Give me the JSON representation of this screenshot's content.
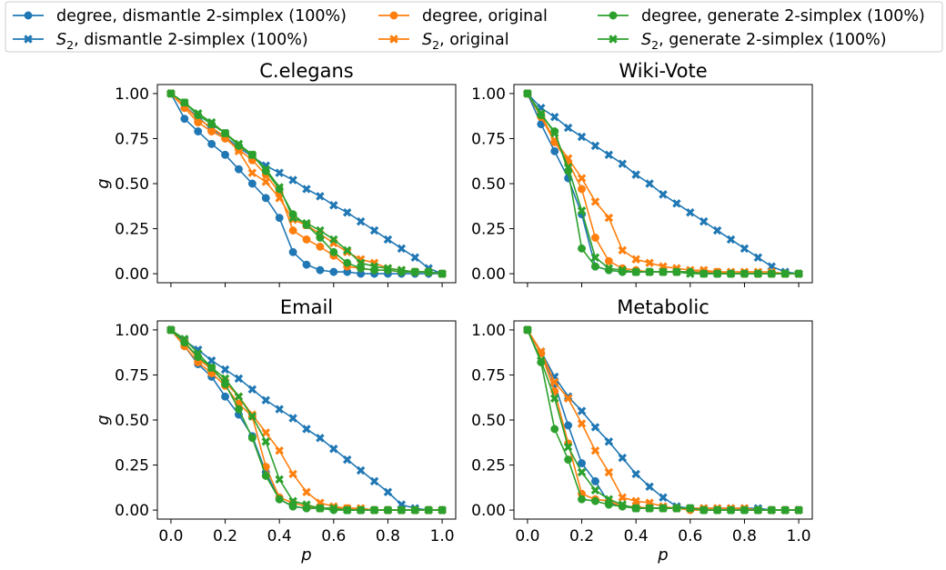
{
  "figure": {
    "legend": [
      {
        "label_main": "degree, dismantle 2-simplex (100%)",
        "label_sym": "",
        "label_sub": "",
        "color": "#1f77b4",
        "marker": "circle"
      },
      {
        "label_main": ", dismantle 2-simplex (100%)",
        "label_sym": "S",
        "label_sub": "2",
        "color": "#1f77b4",
        "marker": "x"
      },
      {
        "label_main": "degree, original",
        "label_sym": "",
        "label_sub": "",
        "color": "#ff7f0e",
        "marker": "circle"
      },
      {
        "label_main": ", original",
        "label_sym": "S",
        "label_sub": "2",
        "color": "#ff7f0e",
        "marker": "x"
      },
      {
        "label_main": "degree, generate 2-simplex (100%)",
        "label_sym": "",
        "label_sub": "",
        "color": "#2ca02c",
        "marker": "circle"
      },
      {
        "label_main": ", generate  2-simplex (100%)",
        "label_sym": "S",
        "label_sub": "2",
        "color": "#2ca02c",
        "marker": "x"
      }
    ]
  },
  "chart_data": [
    {
      "type": "line",
      "title": "C.elegans",
      "xlabel": "",
      "ylabel": "g",
      "xlim": [
        -0.05,
        1.05
      ],
      "ylim": [
        -0.05,
        1.05
      ],
      "xticks": [
        0.0,
        0.2,
        0.4,
        0.6,
        0.8,
        1.0
      ],
      "xtick_labels": [],
      "yticks": [
        0.0,
        0.25,
        0.5,
        0.75,
        1.0
      ],
      "ytick_labels": [
        "0.00",
        "0.25",
        "0.50",
        "0.75",
        "1.00"
      ],
      "x": [
        0,
        0.05,
        0.1,
        0.15,
        0.2,
        0.25,
        0.3,
        0.35,
        0.4,
        0.45,
        0.5,
        0.55,
        0.6,
        0.65,
        0.7,
        0.75,
        0.8,
        0.85,
        0.9,
        0.95,
        1.0
      ],
      "series": [
        {
          "color": "#1f77b4",
          "marker": "circle",
          "values": [
            1.0,
            0.86,
            0.79,
            0.72,
            0.66,
            0.58,
            0.5,
            0.42,
            0.31,
            0.12,
            0.05,
            0.02,
            0.01,
            0.01,
            0.0,
            0.0,
            0.0,
            0.0,
            0.0,
            0.0,
            0.0
          ]
        },
        {
          "color": "#1f77b4",
          "marker": "x",
          "values": [
            1.0,
            0.93,
            0.87,
            0.8,
            0.76,
            0.7,
            0.65,
            0.6,
            0.56,
            0.52,
            0.47,
            0.43,
            0.38,
            0.34,
            0.29,
            0.24,
            0.19,
            0.14,
            0.09,
            0.03,
            0.0
          ]
        },
        {
          "color": "#ff7f0e",
          "marker": "circle",
          "values": [
            1.0,
            0.92,
            0.84,
            0.79,
            0.75,
            0.69,
            0.63,
            0.55,
            0.45,
            0.24,
            0.19,
            0.15,
            0.1,
            0.04,
            0.03,
            0.02,
            0.02,
            0.01,
            0.01,
            0.01,
            0.0
          ]
        },
        {
          "color": "#ff7f0e",
          "marker": "x",
          "values": [
            1.0,
            0.93,
            0.86,
            0.81,
            0.76,
            0.68,
            0.56,
            0.51,
            0.42,
            0.3,
            0.27,
            0.22,
            0.17,
            0.12,
            0.08,
            0.06,
            0.03,
            0.02,
            0.01,
            0.01,
            0.0
          ]
        },
        {
          "color": "#2ca02c",
          "marker": "circle",
          "values": [
            1.0,
            0.95,
            0.88,
            0.83,
            0.78,
            0.71,
            0.66,
            0.57,
            0.47,
            0.33,
            0.27,
            0.2,
            0.12,
            0.06,
            0.03,
            0.02,
            0.02,
            0.01,
            0.01,
            0.01,
            0.0
          ]
        },
        {
          "color": "#2ca02c",
          "marker": "x",
          "values": [
            1.0,
            0.95,
            0.89,
            0.84,
            0.78,
            0.72,
            0.66,
            0.58,
            0.48,
            0.31,
            0.28,
            0.24,
            0.19,
            0.13,
            0.06,
            0.04,
            0.03,
            0.02,
            0.01,
            0.01,
            0.0
          ]
        }
      ]
    },
    {
      "type": "line",
      "title": "Wiki-Vote",
      "xlabel": "",
      "ylabel": "",
      "xlim": [
        -0.05,
        1.05
      ],
      "ylim": [
        -0.05,
        1.05
      ],
      "xticks": [
        0.0,
        0.2,
        0.4,
        0.6,
        0.8,
        1.0
      ],
      "xtick_labels": [],
      "yticks": [
        0.0,
        0.25,
        0.5,
        0.75,
        1.0
      ],
      "ytick_labels": [
        "0.00",
        "0.25",
        "0.50",
        "0.75",
        "1.00"
      ],
      "x": [
        0,
        0.05,
        0.1,
        0.15,
        0.2,
        0.25,
        0.3,
        0.35,
        0.4,
        0.45,
        0.5,
        0.55,
        0.6,
        0.65,
        0.7,
        0.75,
        0.8,
        0.85,
        0.9,
        0.95,
        1.0
      ],
      "series": [
        {
          "color": "#1f77b4",
          "marker": "circle",
          "values": [
            1.0,
            0.83,
            0.68,
            0.53,
            0.33,
            0.04,
            0.02,
            0.01,
            0.01,
            0.01,
            0.01,
            0.01,
            0.01,
            0.01,
            0.0,
            0.0,
            0.0,
            0.0,
            0.0,
            0.0,
            0.0
          ]
        },
        {
          "color": "#1f77b4",
          "marker": "x",
          "values": [
            1.0,
            0.92,
            0.87,
            0.81,
            0.76,
            0.71,
            0.66,
            0.61,
            0.55,
            0.5,
            0.44,
            0.39,
            0.34,
            0.29,
            0.24,
            0.19,
            0.14,
            0.09,
            0.04,
            0.01,
            0.0
          ]
        },
        {
          "color": "#ff7f0e",
          "marker": "circle",
          "values": [
            1.0,
            0.87,
            0.73,
            0.62,
            0.47,
            0.2,
            0.07,
            0.03,
            0.02,
            0.01,
            0.01,
            0.01,
            0.01,
            0.01,
            0.01,
            0.0,
            0.0,
            0.0,
            0.0,
            0.0,
            0.0
          ]
        },
        {
          "color": "#ff7f0e",
          "marker": "x",
          "values": [
            1.0,
            0.88,
            0.74,
            0.64,
            0.53,
            0.4,
            0.31,
            0.13,
            0.08,
            0.06,
            0.04,
            0.03,
            0.02,
            0.02,
            0.01,
            0.01,
            0.01,
            0.01,
            0.01,
            0.0,
            0.0
          ]
        },
        {
          "color": "#2ca02c",
          "marker": "circle",
          "values": [
            1.0,
            0.88,
            0.79,
            0.57,
            0.14,
            0.04,
            0.02,
            0.01,
            0.01,
            0.01,
            0.01,
            0.01,
            0.01,
            0.0,
            0.0,
            0.0,
            0.0,
            0.0,
            0.0,
            0.0,
            0.0
          ]
        },
        {
          "color": "#2ca02c",
          "marker": "x",
          "values": [
            1.0,
            0.89,
            0.78,
            0.59,
            0.35,
            0.09,
            0.03,
            0.02,
            0.01,
            0.01,
            0.01,
            0.01,
            0.0,
            0.0,
            0.0,
            0.0,
            0.0,
            0.0,
            0.0,
            0.0,
            0.0
          ]
        }
      ]
    },
    {
      "type": "line",
      "title": "Email",
      "xlabel": "p",
      "ylabel": "g",
      "xlim": [
        -0.05,
        1.05
      ],
      "ylim": [
        -0.05,
        1.05
      ],
      "xticks": [
        0.0,
        0.2,
        0.4,
        0.6,
        0.8,
        1.0
      ],
      "xtick_labels": [
        "0.0",
        "0.2",
        "0.4",
        "0.6",
        "0.8",
        "1.0"
      ],
      "yticks": [
        0.0,
        0.25,
        0.5,
        0.75,
        1.0
      ],
      "ytick_labels": [
        "0.00",
        "0.25",
        "0.50",
        "0.75",
        "1.00"
      ],
      "x": [
        0,
        0.05,
        0.1,
        0.15,
        0.2,
        0.25,
        0.3,
        0.35,
        0.4,
        0.45,
        0.5,
        0.55,
        0.6,
        0.65,
        0.7,
        0.75,
        0.8,
        0.85,
        0.9,
        0.95,
        1.0
      ],
      "series": [
        {
          "color": "#1f77b4",
          "marker": "circle",
          "values": [
            1.0,
            0.91,
            0.81,
            0.74,
            0.63,
            0.53,
            0.41,
            0.21,
            0.06,
            0.02,
            0.01,
            0.01,
            0.01,
            0.0,
            0.0,
            0.0,
            0.0,
            0.0,
            0.0,
            0.0,
            0.0
          ]
        },
        {
          "color": "#1f77b4",
          "marker": "x",
          "values": [
            1.0,
            0.94,
            0.89,
            0.83,
            0.78,
            0.73,
            0.67,
            0.61,
            0.56,
            0.51,
            0.45,
            0.4,
            0.34,
            0.28,
            0.22,
            0.16,
            0.1,
            0.03,
            0.01,
            0.0,
            0.0
          ]
        },
        {
          "color": "#ff7f0e",
          "marker": "circle",
          "values": [
            1.0,
            0.91,
            0.82,
            0.76,
            0.69,
            0.59,
            0.52,
            0.24,
            0.07,
            0.04,
            0.02,
            0.01,
            0.01,
            0.01,
            0.0,
            0.0,
            0.0,
            0.0,
            0.0,
            0.0,
            0.0
          ]
        },
        {
          "color": "#ff7f0e",
          "marker": "x",
          "values": [
            1.0,
            0.93,
            0.84,
            0.78,
            0.71,
            0.63,
            0.53,
            0.43,
            0.33,
            0.2,
            0.1,
            0.04,
            0.02,
            0.01,
            0.01,
            0.0,
            0.0,
            0.0,
            0.0,
            0.0,
            0.0
          ]
        },
        {
          "color": "#2ca02c",
          "marker": "circle",
          "values": [
            1.0,
            0.93,
            0.85,
            0.79,
            0.7,
            0.56,
            0.4,
            0.19,
            0.06,
            0.02,
            0.01,
            0.01,
            0.0,
            0.0,
            0.0,
            0.0,
            0.0,
            0.0,
            0.0,
            0.0,
            0.0
          ]
        },
        {
          "color": "#2ca02c",
          "marker": "x",
          "values": [
            1.0,
            0.95,
            0.87,
            0.79,
            0.73,
            0.63,
            0.52,
            0.38,
            0.17,
            0.05,
            0.03,
            0.01,
            0.01,
            0.0,
            0.0,
            0.0,
            0.0,
            0.0,
            0.0,
            0.0,
            0.0
          ]
        }
      ]
    },
    {
      "type": "line",
      "title": "Metabolic",
      "xlabel": "p",
      "ylabel": "",
      "xlim": [
        -0.05,
        1.05
      ],
      "ylim": [
        -0.05,
        1.05
      ],
      "xticks": [
        0.0,
        0.2,
        0.4,
        0.6,
        0.8,
        1.0
      ],
      "xtick_labels": [
        "0.0",
        "0.2",
        "0.4",
        "0.6",
        "0.8",
        "1.0"
      ],
      "yticks": [
        0.0,
        0.25,
        0.5,
        0.75,
        1.0
      ],
      "ytick_labels": [
        "0.00",
        "0.25",
        "0.50",
        "0.75",
        "1.00"
      ],
      "x": [
        0,
        0.05,
        0.1,
        0.15,
        0.2,
        0.25,
        0.3,
        0.35,
        0.4,
        0.45,
        0.5,
        0.55,
        0.6,
        0.65,
        0.7,
        0.75,
        0.8,
        0.85,
        0.9,
        0.95,
        1.0
      ],
      "series": [
        {
          "color": "#1f77b4",
          "marker": "circle",
          "values": [
            1.0,
            0.87,
            0.7,
            0.47,
            0.26,
            0.16,
            0.04,
            0.02,
            0.01,
            0.01,
            0.01,
            0.01,
            0.01,
            0.0,
            0.0,
            0.0,
            0.0,
            0.0,
            0.0,
            0.0,
            0.0
          ]
        },
        {
          "color": "#1f77b4",
          "marker": "x",
          "values": [
            1.0,
            0.88,
            0.74,
            0.63,
            0.55,
            0.46,
            0.38,
            0.29,
            0.2,
            0.13,
            0.07,
            0.02,
            0.01,
            0.01,
            0.01,
            0.01,
            0.01,
            0.01,
            0.0,
            0.0,
            0.0
          ]
        },
        {
          "color": "#ff7f0e",
          "marker": "circle",
          "values": [
            1.0,
            0.87,
            0.66,
            0.37,
            0.09,
            0.06,
            0.05,
            0.02,
            0.02,
            0.01,
            0.01,
            0.01,
            0.0,
            0.0,
            0.0,
            0.0,
            0.0,
            0.0,
            0.0,
            0.0,
            0.0
          ]
        },
        {
          "color": "#ff7f0e",
          "marker": "x",
          "values": [
            1.0,
            0.88,
            0.71,
            0.62,
            0.48,
            0.33,
            0.21,
            0.07,
            0.05,
            0.04,
            0.02,
            0.01,
            0.01,
            0.01,
            0.01,
            0.01,
            0.01,
            0.0,
            0.0,
            0.0,
            0.0
          ]
        },
        {
          "color": "#2ca02c",
          "marker": "circle",
          "values": [
            1.0,
            0.82,
            0.45,
            0.28,
            0.06,
            0.05,
            0.03,
            0.02,
            0.01,
            0.01,
            0.01,
            0.01,
            0.01,
            0.0,
            0.0,
            0.0,
            0.0,
            0.0,
            0.0,
            0.0,
            0.0
          ]
        },
        {
          "color": "#2ca02c",
          "marker": "x",
          "values": [
            1.0,
            0.83,
            0.62,
            0.35,
            0.21,
            0.11,
            0.06,
            0.03,
            0.01,
            0.01,
            0.01,
            0.01,
            0.01,
            0.0,
            0.0,
            0.0,
            0.0,
            0.0,
            0.0,
            0.0,
            0.0
          ]
        }
      ]
    }
  ]
}
